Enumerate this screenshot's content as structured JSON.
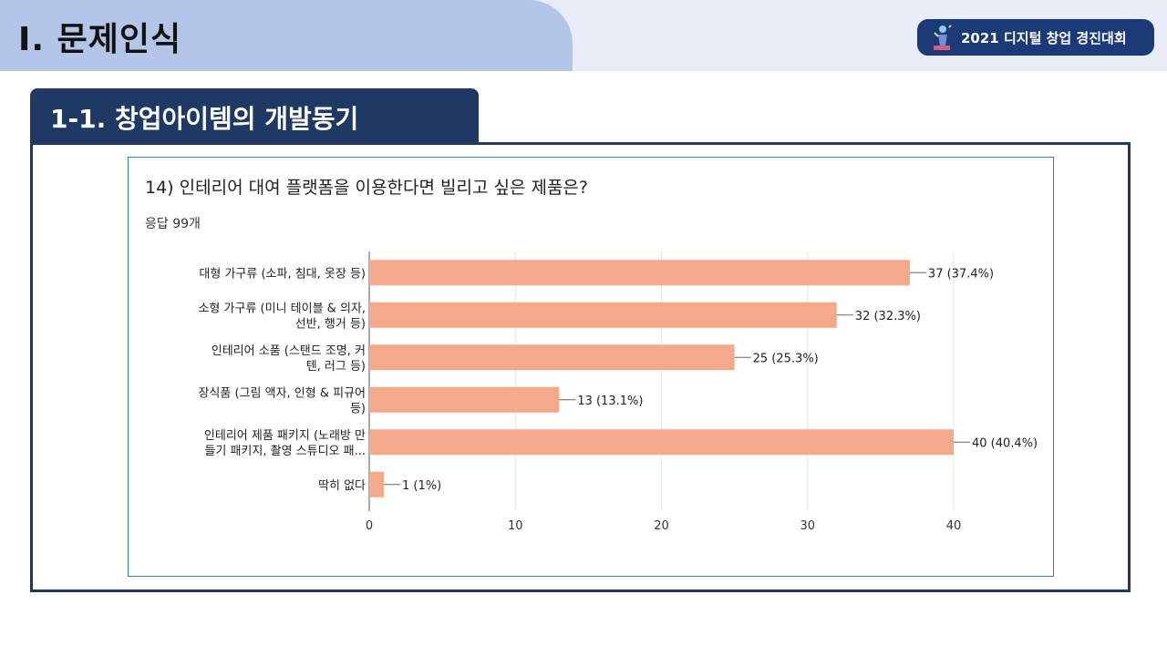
{
  "header": {
    "title": "Ⅰ. 문제인식",
    "badge_text": "2021 디지털 창업 경진대회",
    "badge_icon": "trophy-person-icon"
  },
  "section": {
    "title": "1-1. 창업아이템의 개발동기"
  },
  "chart_card": {
    "question": "14) 인테리어 대여 플랫폼을 이용한다면 빌리고 싶은 제품은?",
    "responses": "응답 99개"
  },
  "colors": {
    "header_tab": "#b3c6e7",
    "header_bg": "#e9edf8",
    "navy": "#1f3864",
    "badge": "#1d3a78",
    "bar": "#f4a98a",
    "card_border": "#1e8a9a"
  },
  "chart_data": {
    "type": "bar",
    "orientation": "horizontal",
    "categories": [
      [
        "대형 가구류 (소파, 침대, 옷장 등)"
      ],
      [
        "소형 가구류 (미니 테이블 & 의자,",
        "선반, 행거 등)"
      ],
      [
        "인테리어 소품 (스탠드 조명, 커",
        "텐, 러그 등)"
      ],
      [
        "장식품 (그림 액자, 인형 & 피규어",
        "등)"
      ],
      [
        "인테리어 제품 패키지 (노래방 만",
        "들기 패키지, 촬영 스튜디오 패..."
      ],
      [
        "딱히 없다"
      ]
    ],
    "values": [
      37,
      32,
      25,
      13,
      40,
      1
    ],
    "value_labels": [
      "37 (37.4%)",
      "32 (32.3%)",
      "25 (25.3%)",
      "13 (13.1%)",
      "40 (40.4%)",
      "1 (1%)"
    ],
    "xlim": [
      0,
      40
    ],
    "xticks": [
      0,
      10,
      20,
      30,
      40
    ],
    "grid": true
  }
}
